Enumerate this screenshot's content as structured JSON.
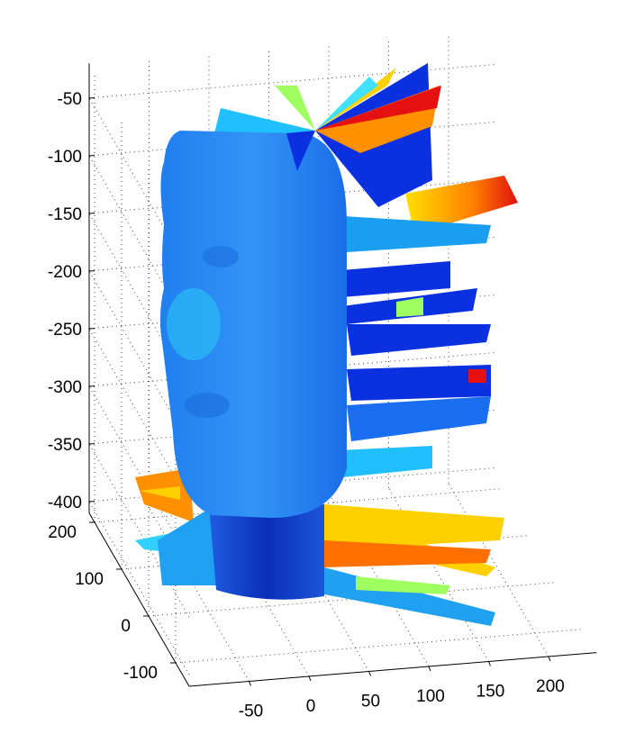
{
  "chart_data": {
    "type": "surface3d",
    "xlim": [
      -100,
      240
    ],
    "ylim": [
      -150,
      220
    ],
    "zlim": [
      -410,
      -20
    ],
    "xticks": [
      -50,
      0,
      50,
      100,
      150,
      200
    ],
    "yticks": [
      -100,
      0,
      100,
      200
    ],
    "zticks": [
      -400,
      -350,
      -300,
      -250,
      -200,
      -150,
      -100,
      -50
    ],
    "grid": true
  }
}
